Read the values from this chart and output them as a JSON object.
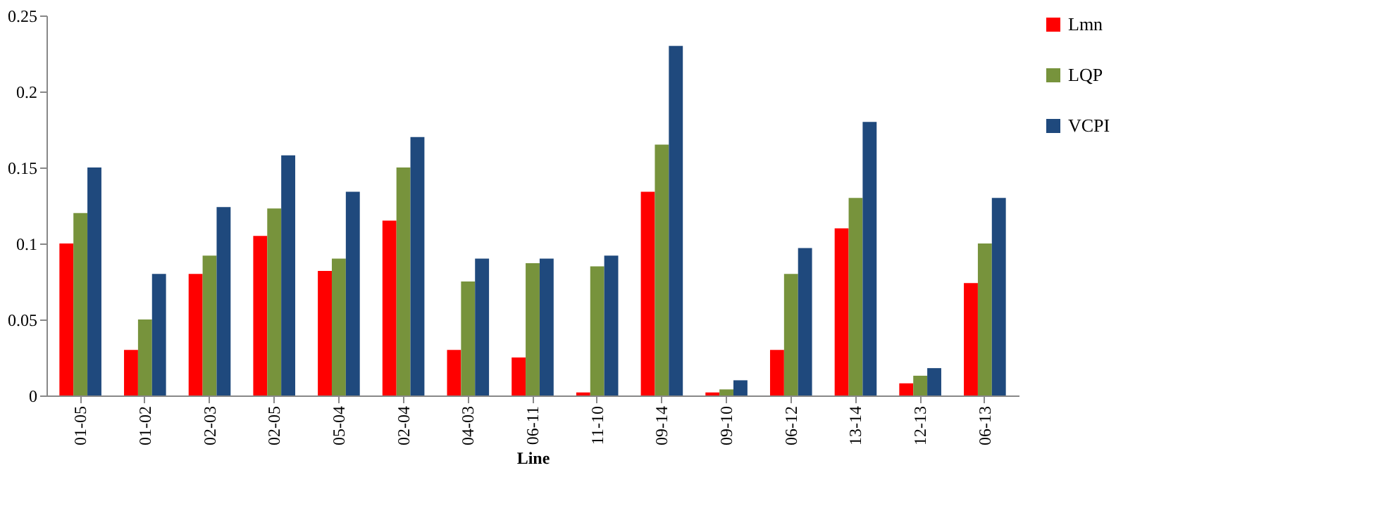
{
  "chart_data": {
    "type": "bar",
    "xlabel": "Line",
    "categories": [
      "01-05",
      "01-02",
      "02-03",
      "02-05",
      "05-04",
      "02-04",
      "04-03",
      "06-11",
      "11-10",
      "09-14",
      "09-10",
      "06-12",
      "13-14",
      "12-13",
      "06-13"
    ],
    "series": [
      {
        "name": "Lmn",
        "color": "#ff0000",
        "values": [
          0.1,
          0.03,
          0.08,
          0.105,
          0.082,
          0.115,
          0.03,
          0.025,
          0.002,
          0.134,
          0.002,
          0.03,
          0.11,
          0.008,
          0.074
        ]
      },
      {
        "name": "LQP",
        "color": "#77933c",
        "values": [
          0.12,
          0.05,
          0.092,
          0.123,
          0.09,
          0.15,
          0.075,
          0.087,
          0.085,
          0.165,
          0.004,
          0.08,
          0.13,
          0.013,
          0.1
        ]
      },
      {
        "name": "VCPI",
        "color": "#1f497d",
        "values": [
          0.15,
          0.08,
          0.124,
          0.158,
          0.134,
          0.17,
          0.09,
          0.09,
          0.092,
          0.23,
          0.01,
          0.097,
          0.18,
          0.018,
          0.13
        ]
      }
    ],
    "ylim": [
      0,
      0.25
    ],
    "yticks": [
      0,
      0.05,
      0.1,
      0.15,
      0.2,
      0.25
    ],
    "grid": false,
    "legend": "top right"
  }
}
